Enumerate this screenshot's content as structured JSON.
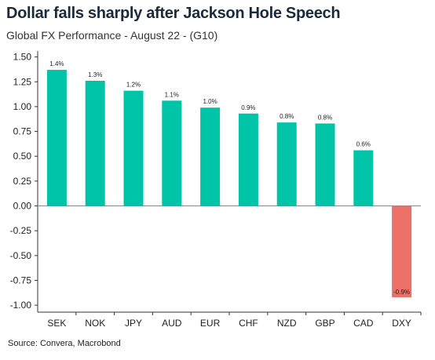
{
  "header": {
    "title": "Dollar falls sharply after Jackson Hole Speech",
    "subtitle": "Global FX Performance - August 22 - (G10)"
  },
  "footer": {
    "source": "Source: Convera, Macrobond"
  },
  "colors": {
    "positive": "#00c4a8",
    "negative": "#ea7068",
    "axis": "#333333"
  },
  "chart_data": {
    "type": "bar",
    "categories": [
      "SEK",
      "NOK",
      "JPY",
      "AUD",
      "EUR",
      "CHF",
      "NZD",
      "GBP",
      "CAD",
      "DXY"
    ],
    "values": [
      1.37,
      1.26,
      1.16,
      1.06,
      0.99,
      0.93,
      0.84,
      0.83,
      0.56,
      -0.92
    ],
    "data_labels": [
      "1.4%",
      "1.3%",
      "1.2%",
      "1.1%",
      "1.0%",
      "0.9%",
      "0.8%",
      "0.8%",
      "0.6%",
      "-0.9%"
    ],
    "yticks": [
      1.5,
      1.25,
      1.0,
      0.75,
      0.5,
      0.25,
      0.0,
      -0.25,
      -0.5,
      -0.75,
      -1.0
    ],
    "ytick_labels": [
      "1.50",
      "1.25",
      "1.00",
      "0.75",
      "0.50",
      "0.25",
      "0.00",
      "-0.25",
      "-0.50",
      "-0.75",
      "-1.00"
    ],
    "ylim": [
      -1.07,
      1.56
    ],
    "grid": false,
    "legend": "none"
  }
}
